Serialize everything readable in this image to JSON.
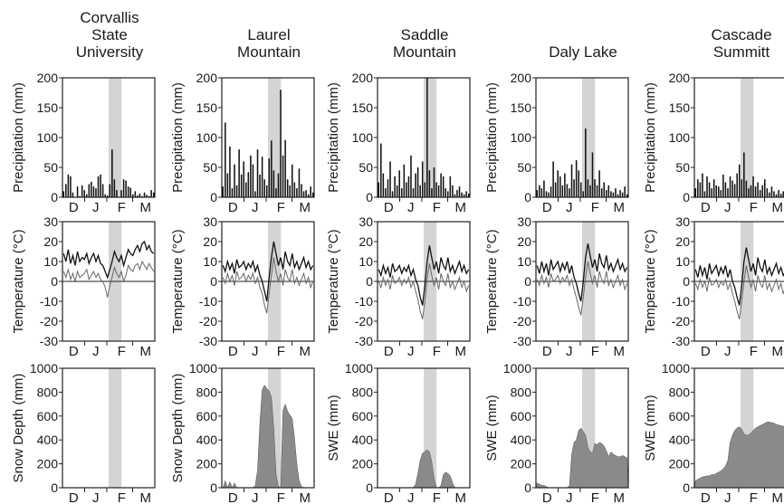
{
  "stations": [
    {
      "name_lines": [
        "Corvallis",
        "State",
        "University"
      ]
    },
    {
      "name_lines": [
        "Laurel",
        "Mountain"
      ]
    },
    {
      "name_lines": [
        "Saddle",
        "Mountain"
      ]
    },
    {
      "name_lines": [
        "Daly Lake"
      ]
    },
    {
      "name_lines": [
        "Cascade",
        "Summitt"
      ]
    }
  ],
  "chart_data": [
    {
      "type": "bar",
      "row": "precipitation",
      "ylabel": "Precipitation (mm)",
      "ylim": [
        0,
        200
      ],
      "yticks": [
        0,
        50,
        100,
        150,
        200
      ],
      "xticks": [
        "D",
        "J",
        "F",
        "M"
      ],
      "highlight_color": "#d4d4d4",
      "bar_color": "#111111",
      "series": [
        {
          "station": "Corvallis State University",
          "peak": 80,
          "values": [
            10,
            22,
            38,
            35,
            8,
            0,
            18,
            2,
            20,
            12,
            5,
            22,
            26,
            18,
            15,
            35,
            38,
            22,
            5,
            3,
            22,
            80,
            30,
            12,
            0,
            12,
            30,
            28,
            18,
            16,
            5,
            10,
            3,
            6,
            2,
            8,
            4,
            2,
            12,
            8
          ]
        },
        {
          "station": "Laurel Mountain",
          "peak": 180,
          "values": [
            18,
            125,
            40,
            85,
            15,
            55,
            20,
            80,
            38,
            60,
            25,
            42,
            70,
            55,
            10,
            80,
            38,
            68,
            30,
            20,
            65,
            95,
            45,
            15,
            40,
            180,
            70,
            96,
            30,
            20,
            55,
            25,
            15,
            48,
            22,
            10,
            12,
            5,
            18,
            8
          ]
        },
        {
          "station": "Saddle Mountain",
          "peak": 200,
          "values": [
            25,
            90,
            40,
            15,
            30,
            60,
            10,
            35,
            20,
            45,
            15,
            55,
            25,
            35,
            70,
            15,
            40,
            50,
            20,
            60,
            25,
            200,
            45,
            15,
            50,
            25,
            20,
            40,
            35,
            15,
            10,
            35,
            20,
            5,
            12,
            18,
            8,
            5,
            10,
            6
          ]
        },
        {
          "station": "Daly Lake",
          "peak": 115,
          "values": [
            12,
            20,
            15,
            28,
            10,
            8,
            18,
            60,
            25,
            45,
            35,
            20,
            40,
            22,
            15,
            55,
            30,
            62,
            45,
            25,
            10,
            115,
            30,
            20,
            75,
            30,
            20,
            45,
            15,
            25,
            12,
            20,
            10,
            8,
            15,
            5,
            12,
            8,
            18,
            5
          ]
        },
        {
          "station": "Cascade Summitt",
          "peak": 75,
          "values": [
            15,
            30,
            25,
            40,
            10,
            35,
            25,
            15,
            30,
            20,
            18,
            12,
            38,
            25,
            15,
            35,
            28,
            22,
            40,
            55,
            30,
            75,
            28,
            15,
            20,
            35,
            18,
            25,
            12,
            20,
            30,
            15,
            8,
            18,
            10,
            5,
            12,
            6,
            10,
            4
          ]
        }
      ]
    },
    {
      "type": "line",
      "row": "temperature",
      "ylabel": "Temperature (°C)",
      "ylim": [
        -30,
        30
      ],
      "yticks": [
        30,
        20,
        10,
        0,
        -10,
        -20,
        -30
      ],
      "xticks": [
        "D",
        "J",
        "F",
        "M"
      ],
      "series": [
        {
          "station": "Corvallis State University",
          "max": [
            14,
            10,
            16,
            9,
            13,
            8,
            15,
            10,
            12,
            11,
            14,
            9,
            12,
            14,
            10,
            13,
            9,
            8,
            5,
            2,
            6,
            10,
            15,
            12,
            10,
            13,
            8,
            12,
            16,
            14,
            13,
            16,
            18,
            15,
            19,
            20,
            16,
            18,
            15,
            14
          ],
          "min": [
            5,
            2,
            6,
            1,
            4,
            0,
            5,
            2,
            3,
            4,
            6,
            1,
            3,
            5,
            2,
            4,
            1,
            0,
            -3,
            -8,
            -2,
            2,
            7,
            4,
            2,
            5,
            0,
            3,
            8,
            6,
            5,
            8,
            9,
            6,
            10,
            8,
            6,
            9,
            7,
            5
          ]
        },
        {
          "station": "Laurel Mountain",
          "max": [
            8,
            5,
            10,
            6,
            9,
            4,
            11,
            7,
            8,
            10,
            6,
            9,
            7,
            10,
            5,
            8,
            3,
            0,
            -5,
            -10,
            2,
            12,
            20,
            14,
            8,
            12,
            6,
            15,
            10,
            8,
            14,
            7,
            10,
            6,
            9,
            12,
            7,
            10,
            6,
            8
          ],
          "min": [
            2,
            -1,
            4,
            0,
            3,
            -2,
            5,
            1,
            2,
            4,
            0,
            3,
            1,
            4,
            -1,
            2,
            -3,
            -6,
            -12,
            -16,
            -6,
            3,
            12,
            5,
            0,
            4,
            -2,
            6,
            2,
            0,
            6,
            -1,
            2,
            -2,
            1,
            4,
            -1,
            2,
            -3,
            0
          ]
        },
        {
          "station": "Saddle Mountain",
          "max": [
            6,
            3,
            8,
            4,
            7,
            2,
            9,
            5,
            6,
            8,
            4,
            7,
            5,
            8,
            3,
            6,
            1,
            -2,
            -8,
            -12,
            -2,
            10,
            18,
            12,
            6,
            10,
            4,
            12,
            8,
            6,
            12,
            5,
            8,
            4,
            7,
            10,
            5,
            8,
            4,
            6
          ],
          "min": [
            0,
            -3,
            2,
            -2,
            1,
            -4,
            3,
            -1,
            0,
            2,
            -2,
            1,
            -1,
            2,
            -3,
            0,
            -5,
            -9,
            -15,
            -19,
            -10,
            1,
            9,
            3,
            -2,
            2,
            -4,
            4,
            0,
            -2,
            4,
            -3,
            0,
            -4,
            -1,
            2,
            -3,
            0,
            -5,
            -2
          ]
        },
        {
          "station": "Daly Lake",
          "max": [
            8,
            4,
            10,
            5,
            9,
            3,
            11,
            6,
            8,
            10,
            5,
            9,
            6,
            10,
            4,
            8,
            2,
            -1,
            -6,
            -10,
            0,
            12,
            19,
            13,
            7,
            11,
            5,
            14,
            9,
            7,
            13,
            6,
            9,
            5,
            8,
            11,
            6,
            9,
            5,
            7
          ],
          "min": [
            1,
            -2,
            3,
            -1,
            2,
            -3,
            4,
            0,
            1,
            3,
            -1,
            2,
            0,
            3,
            -2,
            1,
            -4,
            -8,
            -13,
            -17,
            -8,
            2,
            10,
            4,
            -1,
            3,
            -3,
            5,
            1,
            -1,
            5,
            -2,
            1,
            -3,
            0,
            3,
            -2,
            1,
            -4,
            -1
          ]
        },
        {
          "station": "Cascade Summitt",
          "max": [
            6,
            2,
            8,
            3,
            7,
            1,
            9,
            4,
            6,
            8,
            3,
            7,
            4,
            8,
            2,
            6,
            0,
            -3,
            -8,
            -12,
            -2,
            10,
            17,
            11,
            5,
            9,
            3,
            12,
            7,
            5,
            11,
            4,
            7,
            3,
            6,
            9,
            4,
            7,
            3,
            5
          ],
          "min": [
            -1,
            -4,
            1,
            -3,
            0,
            -5,
            2,
            -2,
            -1,
            1,
            -3,
            0,
            -2,
            1,
            -4,
            -1,
            -6,
            -10,
            -15,
            -19,
            -10,
            0,
            8,
            2,
            -3,
            1,
            -5,
            3,
            -1,
            -3,
            3,
            -4,
            -1,
            -5,
            -2,
            1,
            -4,
            -1,
            -6,
            -3
          ]
        }
      ]
    },
    {
      "type": "area",
      "row": "snow",
      "ylim": [
        0,
        1000
      ],
      "yticks": [
        1000,
        800,
        600,
        400,
        200,
        0
      ],
      "xticks": [
        "D",
        "J",
        "F",
        "M"
      ],
      "fill_color": "#8a8a8a",
      "series": [
        {
          "station": "Corvallis State University",
          "ylabel": "Snow Depth (mm)",
          "values": [
            0,
            0,
            0,
            0,
            0,
            0,
            0,
            0,
            0,
            0,
            0,
            0,
            0,
            0,
            0,
            0,
            0,
            0,
            0,
            0,
            0,
            0,
            0,
            0,
            0,
            0,
            0,
            0,
            0,
            0,
            0,
            0,
            0,
            0,
            0,
            0,
            0,
            0,
            0,
            0
          ]
        },
        {
          "station": "Laurel Mountain",
          "ylabel": "Snow Depth (mm)",
          "values": [
            0,
            60,
            0,
            50,
            0,
            40,
            0,
            0,
            0,
            0,
            0,
            0,
            0,
            0,
            20,
            150,
            550,
            820,
            860,
            830,
            810,
            760,
            500,
            120,
            10,
            0,
            650,
            700,
            640,
            610,
            580,
            420,
            200,
            60,
            10,
            0,
            0,
            0,
            0,
            0
          ]
        },
        {
          "station": "Saddle Mountain",
          "ylabel": "SWE (mm)",
          "values": [
            0,
            0,
            0,
            0,
            0,
            0,
            0,
            0,
            0,
            0,
            0,
            0,
            0,
            0,
            0,
            0,
            30,
            120,
            230,
            290,
            300,
            320,
            300,
            220,
            80,
            0,
            0,
            20,
            110,
            130,
            120,
            100,
            40,
            0,
            0,
            0,
            0,
            0,
            0,
            0
          ]
        },
        {
          "station": "Daly Lake",
          "ylabel": "SWE (mm)",
          "values": [
            40,
            30,
            20,
            20,
            10,
            0,
            0,
            0,
            0,
            0,
            0,
            0,
            0,
            0,
            20,
            280,
            380,
            400,
            480,
            500,
            470,
            440,
            340,
            300,
            290,
            370,
            360,
            380,
            370,
            350,
            310,
            260,
            300,
            280,
            270,
            260,
            260,
            270,
            260,
            250
          ]
        },
        {
          "station": "Cascade Summitt",
          "ylabel": "SWE (mm)",
          "values": [
            60,
            70,
            80,
            90,
            95,
            100,
            100,
            110,
            110,
            120,
            130,
            140,
            160,
            180,
            230,
            380,
            440,
            480,
            500,
            510,
            490,
            450,
            440,
            440,
            460,
            480,
            500,
            510,
            520,
            530,
            540,
            550,
            550,
            545,
            540,
            530,
            525,
            520,
            515,
            510
          ]
        }
      ]
    }
  ]
}
